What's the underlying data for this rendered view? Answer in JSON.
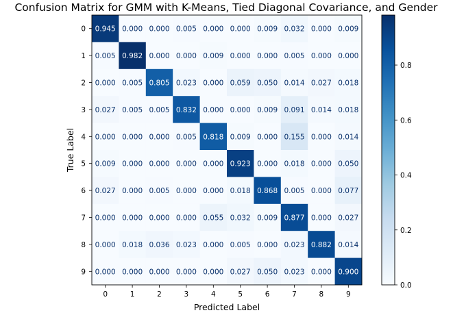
{
  "chart_data": {
    "type": "heatmap",
    "title": "Confusion Matrix for GMM with K-Means, Tied Diagonal Covariance, and Gender",
    "xlabel": "Predicted Label",
    "ylabel": "True Label",
    "x_ticks": [
      "0",
      "1",
      "2",
      "3",
      "4",
      "5",
      "6",
      "7",
      "8",
      "9"
    ],
    "y_ticks": [
      "0",
      "1",
      "2",
      "3",
      "4",
      "5",
      "6",
      "7",
      "8",
      "9"
    ],
    "matrix": [
      [
        0.945,
        0.0,
        0.0,
        0.005,
        0.0,
        0.0,
        0.009,
        0.032,
        0.0,
        0.009
      ],
      [
        0.005,
        0.982,
        0.0,
        0.0,
        0.009,
        0.0,
        0.0,
        0.005,
        0.0,
        0.0
      ],
      [
        0.0,
        0.005,
        0.805,
        0.023,
        0.0,
        0.059,
        0.05,
        0.014,
        0.027,
        0.018
      ],
      [
        0.027,
        0.005,
        0.005,
        0.832,
        0.0,
        0.0,
        0.009,
        0.091,
        0.014,
        0.018
      ],
      [
        0.0,
        0.0,
        0.0,
        0.005,
        0.818,
        0.009,
        0.0,
        0.155,
        0.0,
        0.014
      ],
      [
        0.009,
        0.0,
        0.0,
        0.0,
        0.0,
        0.923,
        0.0,
        0.018,
        0.0,
        0.05
      ],
      [
        0.027,
        0.0,
        0.005,
        0.0,
        0.0,
        0.018,
        0.868,
        0.005,
        0.0,
        0.077
      ],
      [
        0.0,
        0.0,
        0.0,
        0.0,
        0.055,
        0.032,
        0.009,
        0.877,
        0.0,
        0.027
      ],
      [
        0.0,
        0.018,
        0.036,
        0.023,
        0.0,
        0.005,
        0.0,
        0.023,
        0.882,
        0.014
      ],
      [
        0.0,
        0.0,
        0.0,
        0.0,
        0.0,
        0.027,
        0.05,
        0.023,
        0.0,
        0.9
      ]
    ],
    "colorbar": {
      "colormap": "Blues",
      "range": [
        0.0,
        0.982
      ],
      "ticks": [
        "0.0",
        "0.2",
        "0.4",
        "0.6",
        "0.8"
      ],
      "tick_values": [
        0.0,
        0.2,
        0.4,
        0.6,
        0.8
      ]
    },
    "text_colors": {
      "dark": "#08306b",
      "light": "#ffffff"
    },
    "colormap_stops": [
      "#f7fbff",
      "#deebf7",
      "#c6dbef",
      "#9ecae1",
      "#6baed6",
      "#4292c6",
      "#2171b5",
      "#08519c",
      "#08306b"
    ]
  }
}
